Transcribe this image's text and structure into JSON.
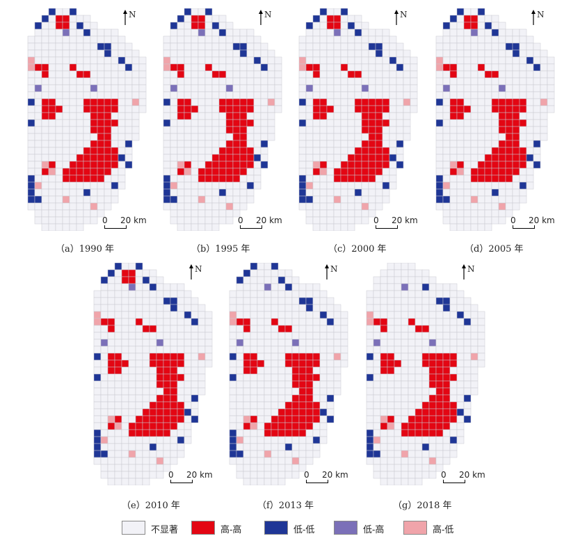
{
  "legend": {
    "items": [
      {
        "key": "ns",
        "label": "不显著",
        "color": "#f2f2f7"
      },
      {
        "key": "hh",
        "label": "高-高",
        "color": "#e30613"
      },
      {
        "key": "ll",
        "label": "低-低",
        "color": "#1f3696"
      },
      {
        "key": "lh",
        "label": "低-高",
        "color": "#7b70b8"
      },
      {
        "key": "hl",
        "label": "高-低",
        "color": "#f0a4aa"
      }
    ]
  },
  "north_label": "N",
  "scale_bar": {
    "zero": "0",
    "dist": "20 km"
  },
  "panels": [
    {
      "caption": "（a）1990 年"
    },
    {
      "caption": "（b）1995 年"
    },
    {
      "caption": "（c）2000 年"
    },
    {
      "caption": "（d）2005 年"
    },
    {
      "caption": "（e）2010 年"
    },
    {
      "caption": "（f）2013 年"
    },
    {
      "caption": "（g）2018 年"
    }
  ]
}
